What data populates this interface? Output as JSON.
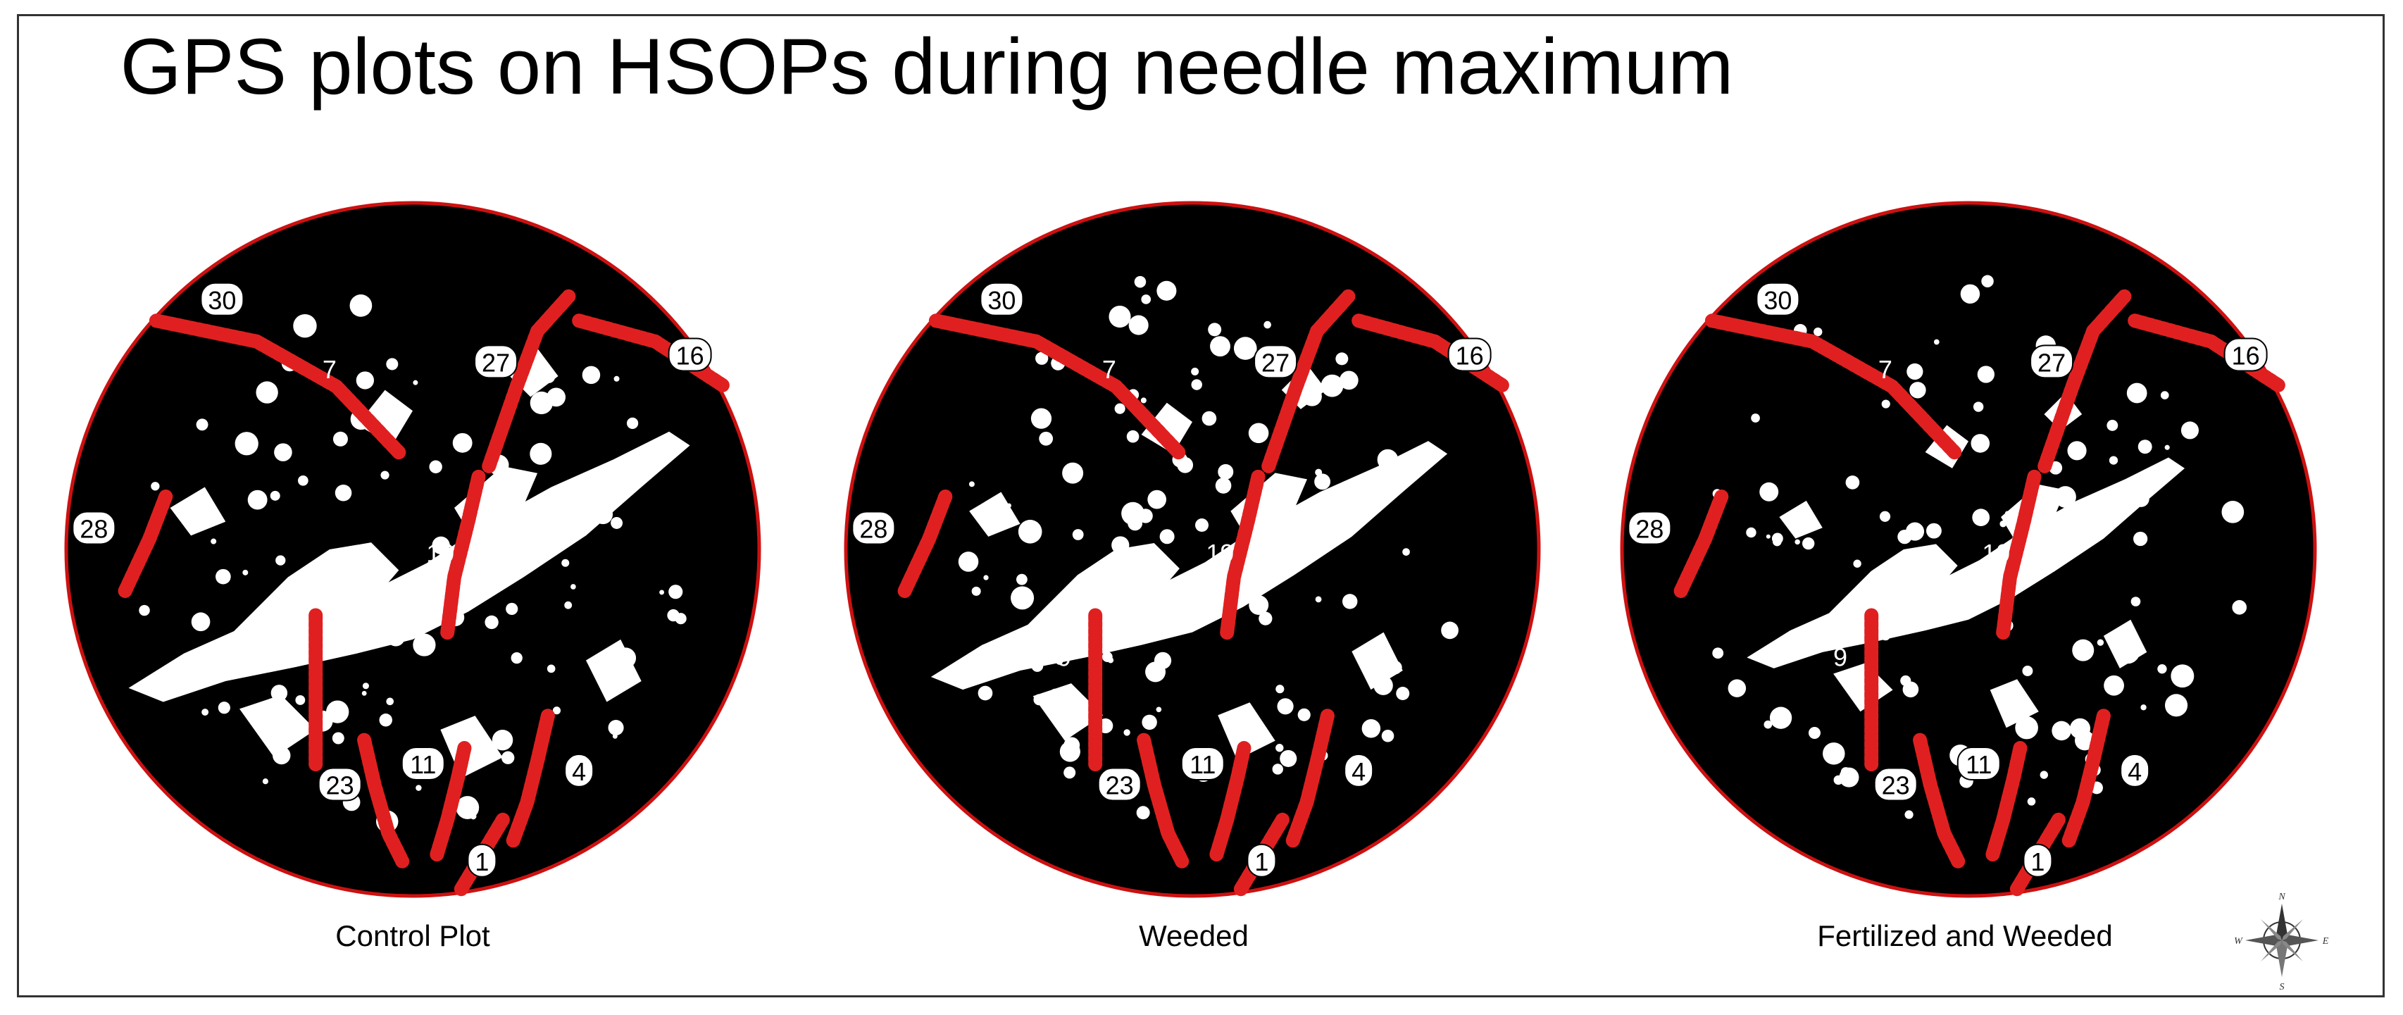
{
  "title": "GPS plots on HSOPs during needle maximum",
  "panels": [
    {
      "caption": "Control Plot"
    },
    {
      "caption": "Weeded"
    },
    {
      "caption": "Fertilized and Weeded"
    }
  ],
  "plot_labels": [
    "30",
    "7",
    "27",
    "16",
    "28",
    "19",
    "9",
    "23",
    "11",
    "4",
    "1"
  ],
  "compass": {
    "north": "N",
    "south": "S",
    "east": "E",
    "west": "W"
  },
  "colors": {
    "trace": "#e02020",
    "circle_border": "#cc1111",
    "sky": "#ffffff",
    "canopy": "#000000"
  }
}
